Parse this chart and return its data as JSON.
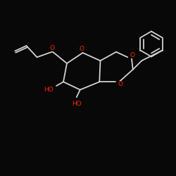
{
  "bg_color": "#080808",
  "bond_color": "#d0d0d0",
  "atom_O_color": "#ff2200",
  "figsize": [
    2.5,
    2.5
  ],
  "dpi": 100,
  "bond_lw": 1.3,
  "font_size": 6.5,
  "xlim": [
    0,
    10
  ],
  "ylim": [
    0,
    10
  ]
}
